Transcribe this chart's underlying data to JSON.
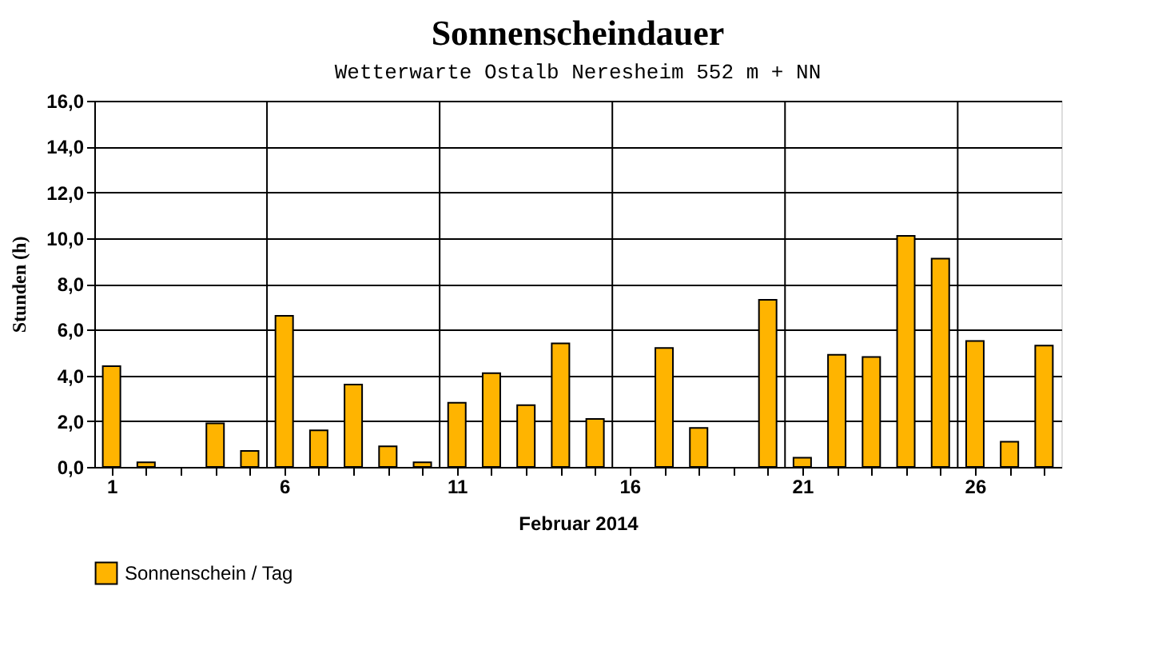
{
  "chart_data": {
    "type": "bar",
    "title": "Sonnenscheindauer",
    "subtitle": "Wetterwarte Ostalb Neresheim 552 m + NN",
    "xlabel": "Februar 2014",
    "ylabel": "Stunden  (h)",
    "x": [
      1,
      2,
      3,
      4,
      5,
      6,
      7,
      8,
      9,
      10,
      11,
      12,
      13,
      14,
      15,
      16,
      17,
      18,
      19,
      20,
      21,
      22,
      23,
      24,
      25,
      26,
      27,
      28
    ],
    "series": [
      {
        "name": "Sonnenschein / Tag",
        "color": "#ffb400",
        "values": [
          4.4,
          0.2,
          null,
          1.9,
          0.7,
          6.6,
          1.6,
          3.6,
          0.9,
          0.2,
          2.8,
          4.1,
          2.7,
          5.4,
          2.1,
          null,
          5.2,
          1.7,
          null,
          7.3,
          0.4,
          4.9,
          4.8,
          10.1,
          9.1,
          5.5,
          1.1,
          5.3
        ]
      }
    ],
    "xlim": [
      0.5,
      28.5
    ],
    "xticks": [
      {
        "value": 1,
        "label": "1"
      },
      {
        "value": 2,
        "label": null
      },
      {
        "value": 3,
        "label": null
      },
      {
        "value": 4,
        "label": null
      },
      {
        "value": 5,
        "label": null
      },
      {
        "value": 6,
        "label": "6"
      },
      {
        "value": 7,
        "label": null
      },
      {
        "value": 8,
        "label": null
      },
      {
        "value": 9,
        "label": null
      },
      {
        "value": 10,
        "label": null
      },
      {
        "value": 11,
        "label": "11"
      },
      {
        "value": 12,
        "label": null
      },
      {
        "value": 13,
        "label": null
      },
      {
        "value": 14,
        "label": null
      },
      {
        "value": 15,
        "label": null
      },
      {
        "value": 16,
        "label": "16"
      },
      {
        "value": 17,
        "label": null
      },
      {
        "value": 18,
        "label": null
      },
      {
        "value": 19,
        "label": null
      },
      {
        "value": 20,
        "label": null
      },
      {
        "value": 21,
        "label": "21"
      },
      {
        "value": 22,
        "label": null
      },
      {
        "value": 23,
        "label": null
      },
      {
        "value": 24,
        "label": null
      },
      {
        "value": 25,
        "label": null
      },
      {
        "value": 26,
        "label": "26"
      },
      {
        "value": 27,
        "label": null
      },
      {
        "value": 28,
        "label": null
      }
    ],
    "ylim": [
      0,
      16
    ],
    "yticks": [
      {
        "value": 0,
        "label": "0,0"
      },
      {
        "value": 2,
        "label": "2,0"
      },
      {
        "value": 4,
        "label": "4,0"
      },
      {
        "value": 6,
        "label": "6,0"
      },
      {
        "value": 8,
        "label": "8,0"
      },
      {
        "value": 10,
        "label": "10,0"
      },
      {
        "value": 12,
        "label": "12,0"
      },
      {
        "value": 14,
        "label": "14,0"
      },
      {
        "value": 16,
        "label": "16,0"
      }
    ],
    "grid": true,
    "legend": "bottom"
  }
}
